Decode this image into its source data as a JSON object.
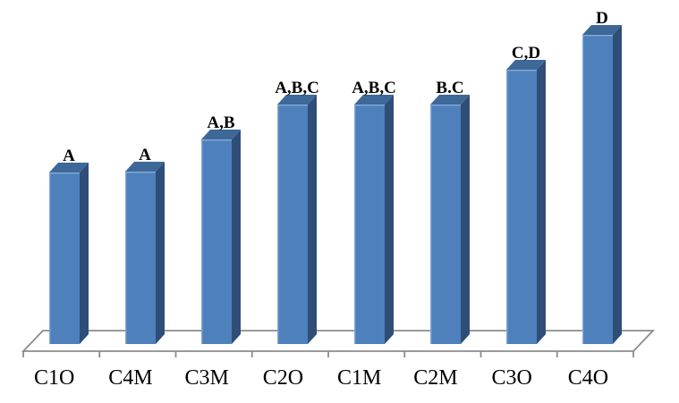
{
  "chart_data": {
    "type": "bar",
    "style_3d": true,
    "title": "",
    "xlabel": "",
    "ylabel": "",
    "y_axis_shown": false,
    "grid": false,
    "legend": null,
    "categories": [
      "C1O",
      "C4M",
      "C3M",
      "C2O",
      "C1M",
      "C2M",
      "C3O",
      "C4O"
    ],
    "values": [
      0.555,
      0.557,
      0.662,
      0.775,
      0.775,
      0.775,
      0.887,
      1.0
    ],
    "values_unit": "fraction of tallest bar (no value axis shown in chart)",
    "bar_labels": [
      "A",
      "A",
      "A,B",
      "A,B,C",
      "A,B,C",
      "B.C",
      "C,D",
      "D"
    ],
    "colors": {
      "bar_front": "#4E80BC",
      "bar_top": "#3E6897",
      "bar_side": "#2F4E77",
      "bar_highlight": "#85ABD8",
      "axis_line": "#8C8C8C",
      "text": "#000000",
      "background": "#FFFFFF"
    }
  }
}
